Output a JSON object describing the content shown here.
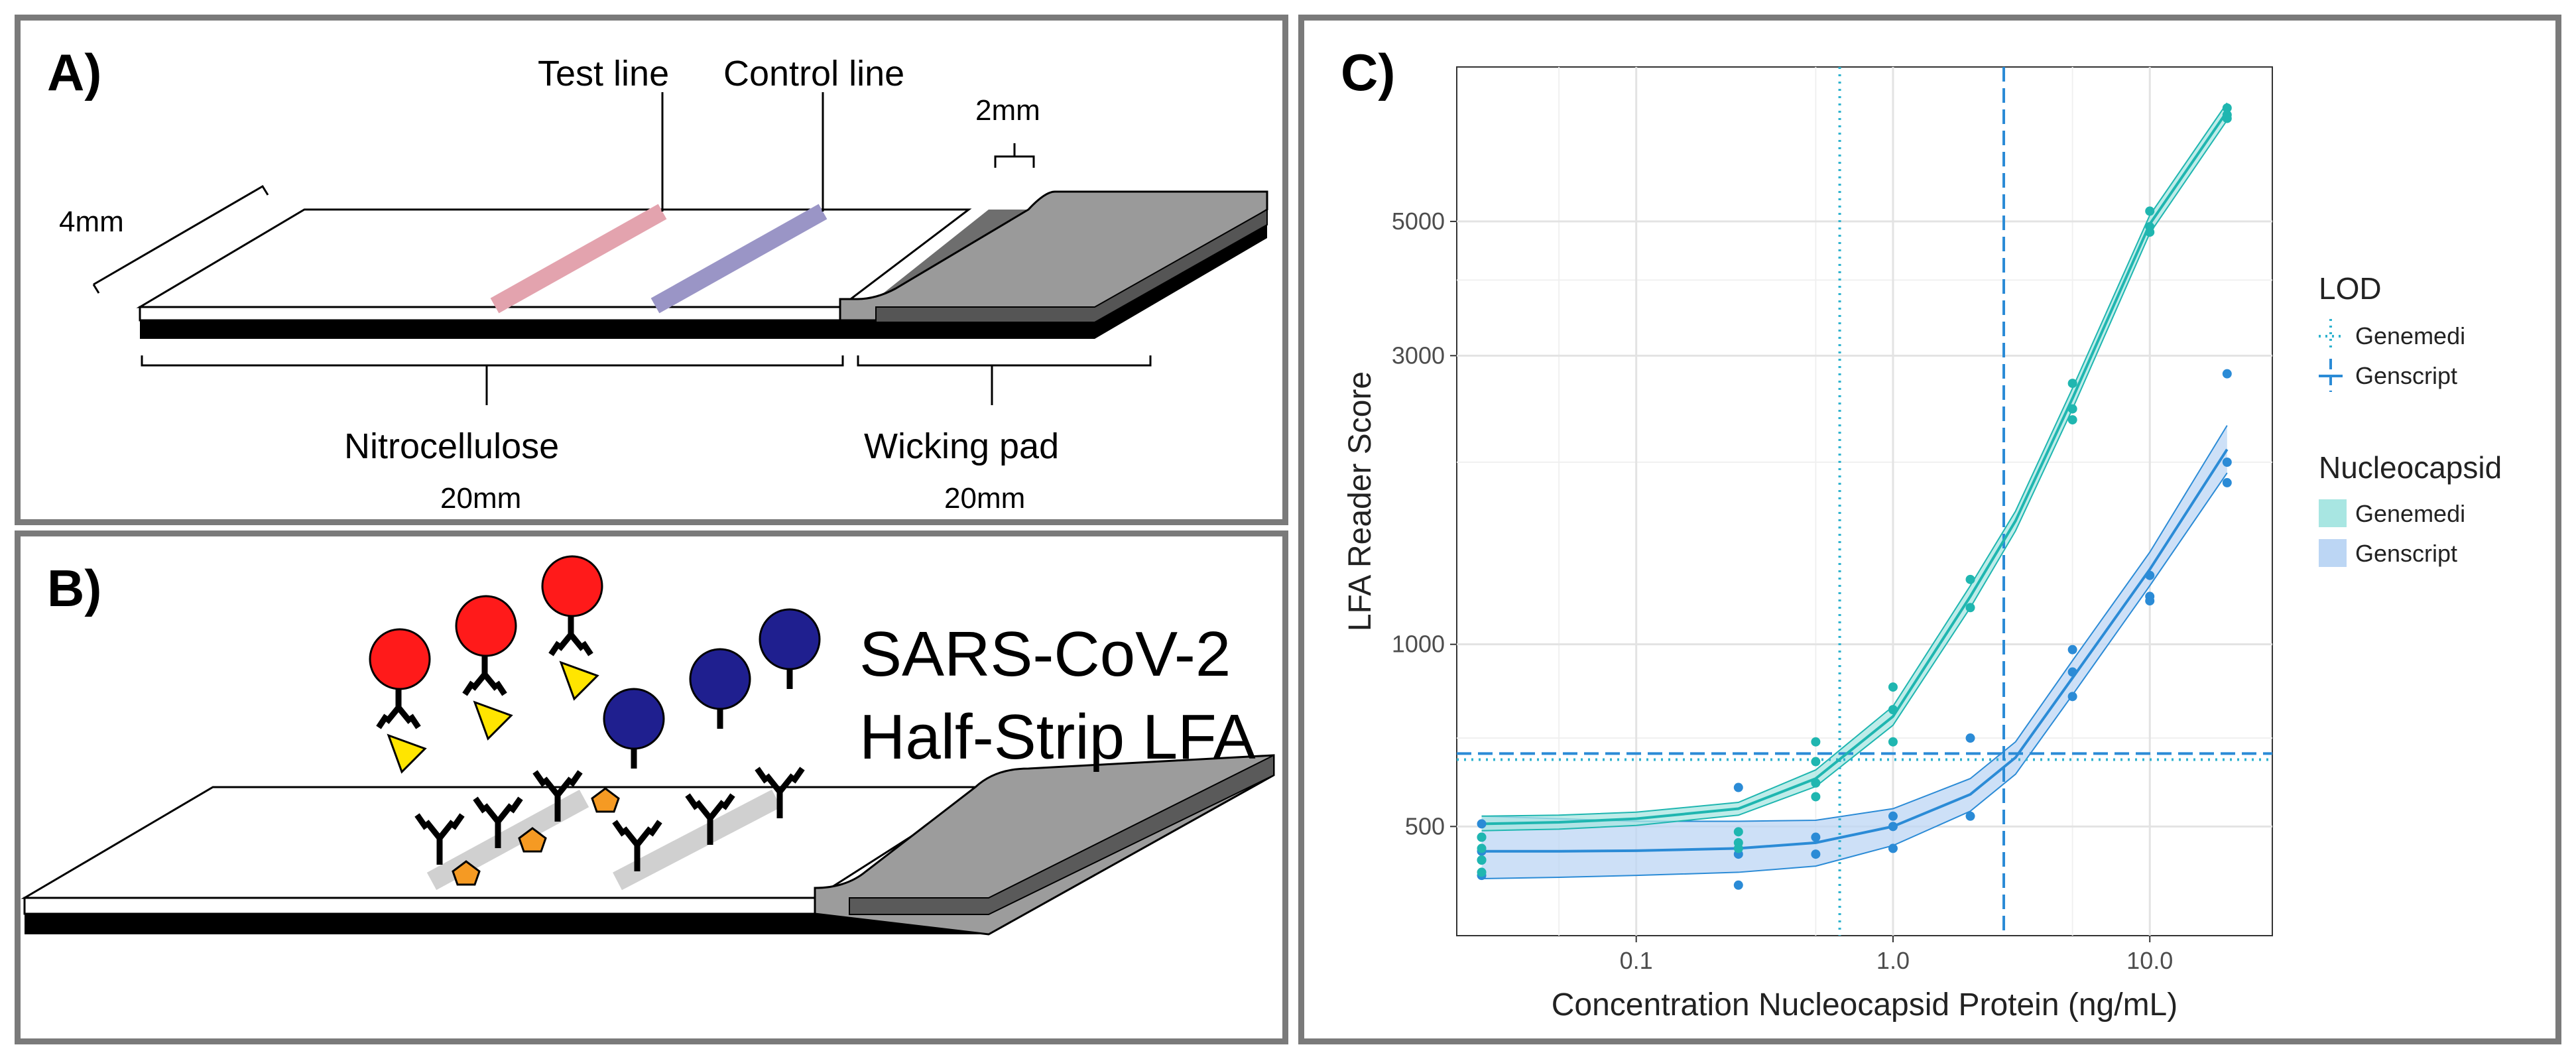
{
  "panel_a": {
    "label": "A)",
    "test_line": "Test line",
    "control_line": "Control line",
    "width_label": "4mm",
    "pad_label": "2mm",
    "nitro_label": "Nitrocellulose",
    "nitro_length": "20mm",
    "wick_label": "Wicking pad",
    "wick_length": "20mm"
  },
  "panel_b": {
    "label": "B)",
    "title_line1": "SARS-CoV-2",
    "title_line2": "Half-Strip LFA"
  },
  "panel_c": {
    "label": "C)"
  },
  "colors": {
    "genemedi": "#1fb6b0",
    "genscript": "#2b8bd6",
    "genemedi_band": "#a8e6e2",
    "genscript_band": "#bcd6f4",
    "test_line": "#e3a3ae",
    "control_line": "#9a95c6"
  },
  "chart_data": {
    "type": "scatter",
    "xlabel": "Concentration Nucleocapsid Protein (ng/mL)",
    "ylabel": "LFA Reader Score",
    "x_scale": "log10",
    "y_scale": "log10",
    "xlim": [
      0.02,
      30
    ],
    "ylim": [
      330,
      9000
    ],
    "x_ticks": [
      {
        "v": 0.1,
        "label": "0.1"
      },
      {
        "v": 1.0,
        "label": "1.0"
      },
      {
        "v": 10.0,
        "label": "10.0"
      }
    ],
    "y_ticks": [
      {
        "v": 500,
        "label": "500"
      },
      {
        "v": 1000,
        "label": "1000"
      },
      {
        "v": 3000,
        "label": "3000"
      },
      {
        "v": 5000,
        "label": "5000"
      }
    ],
    "legend_lod": {
      "title": "LOD",
      "items": [
        {
          "name": "Genemedi",
          "style": "dotted"
        },
        {
          "name": "Genscript",
          "style": "dashed"
        }
      ]
    },
    "legend_nc": {
      "title": "Nucleocapsid",
      "items": [
        {
          "name": "Genemedi"
        },
        {
          "name": "Genscript"
        }
      ]
    },
    "lod": {
      "genemedi": {
        "x": 0.62,
        "y": 645
      },
      "genscript": {
        "x": 2.7,
        "y": 660
      }
    },
    "series": [
      {
        "name": "Genemedi",
        "points": [
          [
            0.025,
            480
          ],
          [
            0.025,
            440
          ],
          [
            0.025,
            420
          ],
          [
            0.025,
            460
          ],
          [
            0.25,
            470
          ],
          [
            0.25,
            490
          ],
          [
            0.25,
            460
          ],
          [
            0.5,
            690
          ],
          [
            0.5,
            560
          ],
          [
            0.5,
            640
          ],
          [
            0.5,
            590
          ],
          [
            1.0,
            850
          ],
          [
            1.0,
            780
          ],
          [
            1.0,
            690
          ],
          [
            2.0,
            1280
          ],
          [
            2.0,
            1150
          ],
          [
            5.0,
            2700
          ],
          [
            5.0,
            2450
          ],
          [
            5.0,
            2350
          ],
          [
            10.0,
            5200
          ],
          [
            10.0,
            4900
          ],
          [
            10.0,
            4800
          ],
          [
            20.0,
            7700
          ],
          [
            20.0,
            7500
          ],
          [
            20.0,
            7400
          ]
        ],
        "fit": [
          [
            0.025,
            505
          ],
          [
            0.05,
            508
          ],
          [
            0.1,
            515
          ],
          [
            0.25,
            535
          ],
          [
            0.5,
            600
          ],
          [
            1.0,
            760
          ],
          [
            2.0,
            1200
          ],
          [
            3.0,
            1600
          ],
          [
            5.0,
            2550
          ],
          [
            10.0,
            4950
          ],
          [
            20.0,
            7600
          ]
        ],
        "ci_upper": [
          [
            0.025,
            520
          ],
          [
            0.05,
            522
          ],
          [
            0.1,
            528
          ],
          [
            0.25,
            548
          ],
          [
            0.5,
            620
          ],
          [
            1.0,
            790
          ],
          [
            2.0,
            1250
          ],
          [
            3.0,
            1660
          ],
          [
            5.0,
            2650
          ],
          [
            10.0,
            5120
          ],
          [
            20.0,
            7850
          ]
        ],
        "ci_lower": [
          [
            0.025,
            492
          ],
          [
            0.05,
            495
          ],
          [
            0.1,
            502
          ],
          [
            0.25,
            522
          ],
          [
            0.5,
            582
          ],
          [
            1.0,
            735
          ],
          [
            2.0,
            1150
          ],
          [
            3.0,
            1540
          ],
          [
            5.0,
            2450
          ],
          [
            10.0,
            4780
          ],
          [
            20.0,
            7350
          ]
        ]
      },
      {
        "name": "Genscript",
        "points": [
          [
            0.025,
            505
          ],
          [
            0.025,
            480
          ],
          [
            0.025,
            455
          ],
          [
            0.025,
            440
          ],
          [
            0.025,
            415
          ],
          [
            0.25,
            580
          ],
          [
            0.25,
            450
          ],
          [
            0.25,
            400
          ],
          [
            0.5,
            480
          ],
          [
            0.5,
            450
          ],
          [
            1.0,
            520
          ],
          [
            1.0,
            500
          ],
          [
            1.0,
            460
          ],
          [
            2.0,
            700
          ],
          [
            2.0,
            520
          ],
          [
            5.0,
            980
          ],
          [
            5.0,
            900
          ],
          [
            5.0,
            820
          ],
          [
            10.0,
            1300
          ],
          [
            10.0,
            1200
          ],
          [
            10.0,
            1180
          ],
          [
            20.0,
            2800
          ],
          [
            20.0,
            2000
          ],
          [
            20.0,
            1850
          ]
        ],
        "fit": [
          [
            0.025,
            455
          ],
          [
            0.05,
            455
          ],
          [
            0.1,
            456
          ],
          [
            0.25,
            460
          ],
          [
            0.5,
            470
          ],
          [
            1.0,
            500
          ],
          [
            2.0,
            565
          ],
          [
            3.0,
            650
          ],
          [
            5.0,
            880
          ],
          [
            10.0,
            1330
          ],
          [
            20.0,
            2100
          ]
        ],
        "ci_upper": [
          [
            0.025,
            520
          ],
          [
            0.05,
            515
          ],
          [
            0.1,
            510
          ],
          [
            0.25,
            510
          ],
          [
            0.5,
            512
          ],
          [
            1.0,
            535
          ],
          [
            2.0,
            600
          ],
          [
            3.0,
            690
          ],
          [
            5.0,
            940
          ],
          [
            10.0,
            1420
          ],
          [
            20.0,
            2300
          ]
        ],
        "ci_lower": [
          [
            0.025,
            410
          ],
          [
            0.05,
            412
          ],
          [
            0.1,
            415
          ],
          [
            0.25,
            420
          ],
          [
            0.5,
            430
          ],
          [
            1.0,
            465
          ],
          [
            2.0,
            530
          ],
          [
            3.0,
            610
          ],
          [
            5.0,
            825
          ],
          [
            10.0,
            1250
          ],
          [
            20.0,
            1920
          ]
        ]
      }
    ]
  }
}
